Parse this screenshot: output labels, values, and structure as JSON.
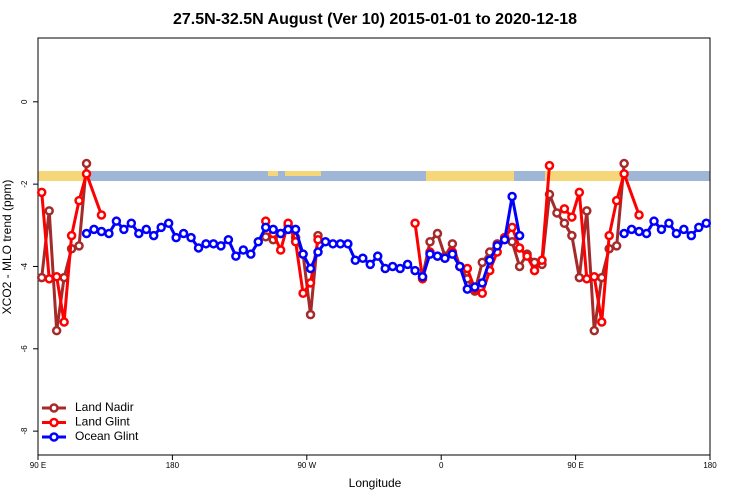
{
  "chart_data": {
    "type": "line",
    "title": "27.5N-32.5N August (Ver 10)   2015-01-01 to 2020-12-18",
    "x_label": "Longitude",
    "y_label": "XCO2 - MLO trend (ppm)",
    "xlim": [
      90,
      540
    ],
    "ylim": [
      1.55,
      -8.58
    ],
    "xticks": [
      {
        "value": 90,
        "label": "90 E"
      },
      180,
      {
        "value": 270,
        "label": "90 W"
      },
      {
        "value": 360,
        "label": "0"
      },
      {
        "value": 450,
        "label": "90 E"
      },
      {
        "value": 540,
        "label": "180"
      }
    ],
    "yticks": [
      0,
      -2,
      -4,
      -6,
      -8
    ],
    "legend": "bottom-left",
    "series": [
      {
        "name": "Land Nadir",
        "color": "#a52a2a",
        "x": [
          92.5,
          97.5,
          102.5,
          107.5,
          112.5,
          117.5,
          122.5,
          200,
          242.5,
          247.5,
          252.5,
          257.5,
          262.5,
          267.5,
          272.5,
          277.5,
          300,
          347.5,
          352.5,
          357.5,
          362.5,
          367.5,
          372.5,
          377.5,
          382.5,
          387.5,
          392.5,
          397.5,
          402.5,
          407.5,
          412.5,
          417.5,
          422.5,
          427.5,
          432.5,
          437.5,
          442.5,
          447.5,
          452.5,
          457.5,
          462.5,
          467.5,
          472.5,
          477.5,
          482.5
        ],
        "values": [
          -4.27,
          -2.65,
          -5.56,
          -4.27,
          -3.57,
          -3.5,
          -1.5,
          null,
          -3.28,
          -3.35,
          -3.2,
          -3.0,
          -3.3,
          -3.7,
          -5.17,
          -3.25,
          null,
          -4.25,
          -3.4,
          -3.2,
          -3.75,
          -3.45,
          -4.0,
          -4.3,
          -4.6,
          -3.9,
          -3.65,
          -3.45,
          -3.3,
          -3.4,
          -4.0,
          -3.7,
          -3.9,
          -3.95,
          -2.25,
          -2.7,
          -2.95,
          -3.25,
          -4.27,
          -2.65,
          -5.56,
          -4.27,
          -3.57,
          -3.5,
          -1.5
        ]
      },
      {
        "name": "Land Glint",
        "color": "#ff0000",
        "x": [
          92.5,
          97.5,
          102.5,
          107.5,
          112.5,
          117.5,
          122.5,
          132.5,
          200,
          242.5,
          247.5,
          252.5,
          257.5,
          262.5,
          267.5,
          272.5,
          277.5,
          300,
          342.5,
          347.5,
          352.5,
          357.5,
          362.5,
          367.5,
          372.5,
          377.5,
          382.5,
          387.5,
          392.5,
          397.5,
          402.5,
          407.5,
          412.5,
          417.5,
          422.5,
          427.5,
          432.5,
          437.5,
          442.5,
          447.5,
          452.5,
          457.5,
          462.5,
          467.5,
          472.5,
          477.5,
          482.5,
          492.5
        ],
        "values": [
          -2.2,
          -4.3,
          -4.25,
          -5.35,
          -3.25,
          -2.4,
          -1.75,
          -2.75,
          null,
          -2.9,
          -3.2,
          -3.6,
          -2.95,
          -3.4,
          -4.65,
          -4.4,
          -3.35,
          null,
          -2.95,
          -4.3,
          -3.65,
          -3.75,
          -3.8,
          -3.65,
          -4.0,
          -4.05,
          -4.55,
          -4.65,
          -4.1,
          -3.65,
          -3.3,
          -3.05,
          -3.55,
          -3.75,
          -4.1,
          -3.85,
          -1.55,
          null,
          -2.6,
          -2.8,
          -2.2,
          -4.3,
          -4.25,
          -5.35,
          -3.25,
          -2.4,
          -1.75,
          -2.75
        ]
      },
      {
        "name": "Ocean Glint",
        "color": "#0000ff",
        "x": [
          122.5,
          127.5,
          132.5,
          137.5,
          142.5,
          147.5,
          152.5,
          157.5,
          162.5,
          167.5,
          172.5,
          177.5,
          182.5,
          187.5,
          192.5,
          197.5,
          202.5,
          207.5,
          212.5,
          217.5,
          222.5,
          227.5,
          232.5,
          237.5,
          242.5,
          247.5,
          252.5,
          257.5,
          262.5,
          267.5,
          272.5,
          277.5,
          282.5,
          287.5,
          292.5,
          297.5,
          302.5,
          307.5,
          312.5,
          317.5,
          322.5,
          327.5,
          332.5,
          337.5,
          342.5,
          347.5,
          352.5,
          357.5,
          362.5,
          367.5,
          372.5,
          377.5,
          382.5,
          387.5,
          392.5,
          397.5,
          402.5,
          407.5,
          412.5,
          450,
          482.5,
          487.5,
          492.5,
          497.5,
          502.5,
          507.5,
          512.5,
          517.5,
          522.5,
          527.5,
          532.5,
          537.5
        ],
        "values": [
          -3.2,
          -3.1,
          -3.15,
          -3.2,
          -2.9,
          -3.1,
          -2.95,
          -3.2,
          -3.1,
          -3.25,
          -3.05,
          -2.95,
          -3.3,
          -3.2,
          -3.3,
          -3.55,
          -3.45,
          -3.45,
          -3.5,
          -3.35,
          -3.75,
          -3.6,
          -3.7,
          -3.4,
          -3.05,
          -3.1,
          -3.2,
          -3.1,
          -3.1,
          -3.7,
          -4.05,
          -3.65,
          -3.4,
          -3.45,
          -3.45,
          -3.45,
          -3.85,
          -3.8,
          -3.95,
          -3.75,
          -4.05,
          -4.0,
          -4.05,
          -3.95,
          -4.1,
          -4.25,
          -3.7,
          -3.75,
          -3.8,
          -3.7,
          -4.0,
          -4.55,
          -4.5,
          -4.4,
          -3.85,
          -3.5,
          -3.35,
          -2.3,
          -3.25,
          null,
          -3.2,
          -3.1,
          -3.15,
          -3.2,
          -2.9,
          -3.1,
          -2.95,
          -3.2,
          -3.1,
          -3.25,
          -3.05,
          -2.95
        ]
      }
    ]
  }
}
